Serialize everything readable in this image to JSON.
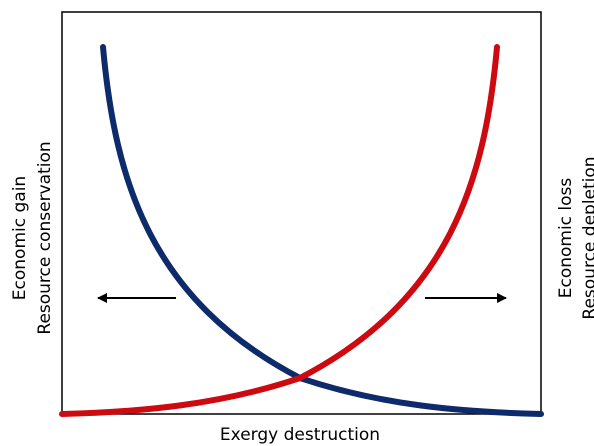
{
  "left_label": {
    "line1": "Economic gain",
    "line2": "Resource conservation"
  },
  "right_label": {
    "line1": "Economic loss",
    "line2": "Resource depletion"
  },
  "x_label": "Exergy destruction"
}
